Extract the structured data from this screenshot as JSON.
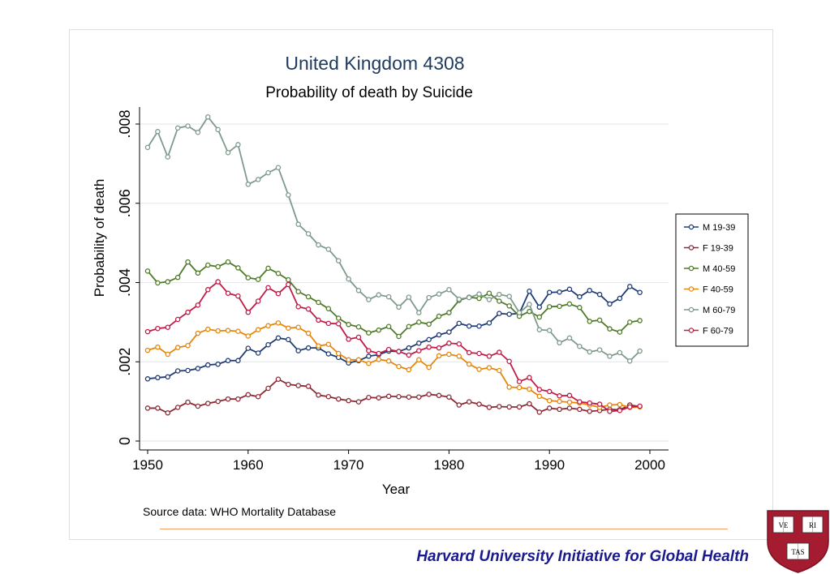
{
  "chart_data": {
    "type": "line",
    "title": "United Kingdom 4308",
    "subtitle": "Probability of death by Suicide",
    "xlabel": "Year",
    "ylabel": "Probability of death",
    "xlim": [
      1950,
      2000
    ],
    "ylim": [
      0,
      0.008
    ],
    "xticks": [
      1950,
      1960,
      1970,
      1980,
      1990,
      2000
    ],
    "yticks": [
      0,
      0.002,
      0.004,
      0.006,
      0.008
    ],
    "ytick_labels": [
      "0",
      ".002",
      ".004",
      ".006",
      ".008"
    ],
    "grid": true,
    "legend_position": "right",
    "note": "Source data: WHO Mortality Database",
    "x": [
      1950,
      1951,
      1952,
      1953,
      1954,
      1955,
      1956,
      1957,
      1958,
      1959,
      1960,
      1961,
      1962,
      1963,
      1964,
      1965,
      1966,
      1967,
      1968,
      1969,
      1970,
      1971,
      1972,
      1973,
      1974,
      1975,
      1976,
      1977,
      1978,
      1979,
      1980,
      1981,
      1982,
      1983,
      1984,
      1985,
      1986,
      1987,
      1988,
      1989,
      1990,
      1991,
      1992,
      1993,
      1994,
      1995,
      1996,
      1997,
      1998,
      1999
    ],
    "series": [
      {
        "name": "M 19-39",
        "color": "#1f3b73",
        "values": [
          0.00157,
          0.0016,
          0.00162,
          0.00177,
          0.00178,
          0.00183,
          0.00192,
          0.00194,
          0.00203,
          0.00203,
          0.00234,
          0.00222,
          0.00243,
          0.0026,
          0.00256,
          0.00228,
          0.00235,
          0.00235,
          0.0022,
          0.00211,
          0.00197,
          0.00203,
          0.00214,
          0.00218,
          0.00227,
          0.00226,
          0.00235,
          0.00247,
          0.00256,
          0.00268,
          0.00275,
          0.00297,
          0.0029,
          0.0029,
          0.00298,
          0.00322,
          0.0032,
          0.00322,
          0.00378,
          0.00338,
          0.00375,
          0.00376,
          0.00383,
          0.00364,
          0.0038,
          0.0037,
          0.00346,
          0.0036,
          0.0039,
          0.00375
        ]
      },
      {
        "name": "F 19-39",
        "color": "#8b2a35",
        "values": [
          0.00083,
          0.00083,
          0.00071,
          0.00085,
          0.00098,
          0.00088,
          0.00095,
          0.001,
          0.00106,
          0.00106,
          0.00117,
          0.00112,
          0.00133,
          0.00156,
          0.00143,
          0.0014,
          0.00138,
          0.00116,
          0.00112,
          0.00106,
          0.00102,
          0.00099,
          0.0011,
          0.00109,
          0.00113,
          0.00112,
          0.00111,
          0.00111,
          0.00118,
          0.00115,
          0.00111,
          0.00091,
          0.00099,
          0.00093,
          0.00085,
          0.00087,
          0.00086,
          0.00086,
          0.00094,
          0.00073,
          0.00083,
          0.0008,
          0.00083,
          0.0008,
          0.00075,
          0.00077,
          0.0008,
          0.00079,
          0.00091,
          0.00087
        ]
      },
      {
        "name": "M 40-59",
        "color": "#4f7a28",
        "values": [
          0.00429,
          0.00399,
          0.00402,
          0.00413,
          0.00452,
          0.00424,
          0.00444,
          0.0044,
          0.00452,
          0.00437,
          0.00412,
          0.00408,
          0.00436,
          0.00423,
          0.00407,
          0.00377,
          0.00364,
          0.0035,
          0.00334,
          0.0031,
          0.00294,
          0.00288,
          0.00273,
          0.0028,
          0.00289,
          0.00264,
          0.00289,
          0.003,
          0.00295,
          0.00315,
          0.00324,
          0.00355,
          0.00363,
          0.0036,
          0.00373,
          0.00353,
          0.00341,
          0.00315,
          0.00327,
          0.00313,
          0.00339,
          0.0034,
          0.00346,
          0.00337,
          0.00302,
          0.00305,
          0.00283,
          0.00275,
          0.003,
          0.00304
        ]
      },
      {
        "name": "F 40-59",
        "color": "#e6860b",
        "values": [
          0.00229,
          0.00237,
          0.00219,
          0.00236,
          0.00241,
          0.00272,
          0.00282,
          0.00278,
          0.00279,
          0.00277,
          0.00265,
          0.00281,
          0.00291,
          0.00298,
          0.00285,
          0.00287,
          0.00272,
          0.0024,
          0.00244,
          0.00221,
          0.00205,
          0.00205,
          0.00196,
          0.00206,
          0.00202,
          0.00188,
          0.0018,
          0.00205,
          0.00186,
          0.00215,
          0.00219,
          0.00214,
          0.00194,
          0.00181,
          0.00185,
          0.00178,
          0.00136,
          0.00135,
          0.00131,
          0.00113,
          0.00102,
          0.001,
          0.00098,
          0.00096,
          0.00091,
          0.00085,
          0.00091,
          0.00092,
          0.00085,
          0.00086
        ]
      },
      {
        "name": "M 60-79",
        "color": "#7f9a8c",
        "values": [
          0.00741,
          0.00781,
          0.00717,
          0.0079,
          0.00795,
          0.00779,
          0.00818,
          0.00786,
          0.00728,
          0.00748,
          0.00648,
          0.0066,
          0.00677,
          0.0069,
          0.00621,
          0.00547,
          0.00523,
          0.00495,
          0.00484,
          0.00455,
          0.00409,
          0.0038,
          0.00357,
          0.00369,
          0.00364,
          0.00338,
          0.00363,
          0.00324,
          0.00362,
          0.00371,
          0.00382,
          0.00358,
          0.00362,
          0.00371,
          0.00357,
          0.0037,
          0.00365,
          0.00324,
          0.00345,
          0.00281,
          0.00279,
          0.00248,
          0.0026,
          0.00239,
          0.00225,
          0.0023,
          0.00214,
          0.00223,
          0.00202,
          0.00227
        ]
      },
      {
        "name": "F 60-79",
        "color": "#c21a47",
        "values": [
          0.00276,
          0.00284,
          0.00287,
          0.00307,
          0.00325,
          0.00343,
          0.00382,
          0.00402,
          0.00373,
          0.00366,
          0.00325,
          0.00353,
          0.00387,
          0.00372,
          0.00395,
          0.00339,
          0.00333,
          0.00305,
          0.00297,
          0.00296,
          0.00257,
          0.00262,
          0.00228,
          0.00221,
          0.00231,
          0.00226,
          0.00217,
          0.00228,
          0.00237,
          0.00235,
          0.00247,
          0.00245,
          0.00223,
          0.00221,
          0.00214,
          0.00224,
          0.00201,
          0.0015,
          0.0016,
          0.0013,
          0.00125,
          0.00114,
          0.00115,
          0.00099,
          0.00096,
          0.00093,
          0.00075,
          0.00077,
          0.00086,
          0.00088
        ]
      }
    ]
  },
  "footer": {
    "title": "Harvard University Initiative for Global Health",
    "logo_text": [
      "VE",
      "RI",
      "TAS"
    ],
    "line_color": "#f2a068"
  }
}
